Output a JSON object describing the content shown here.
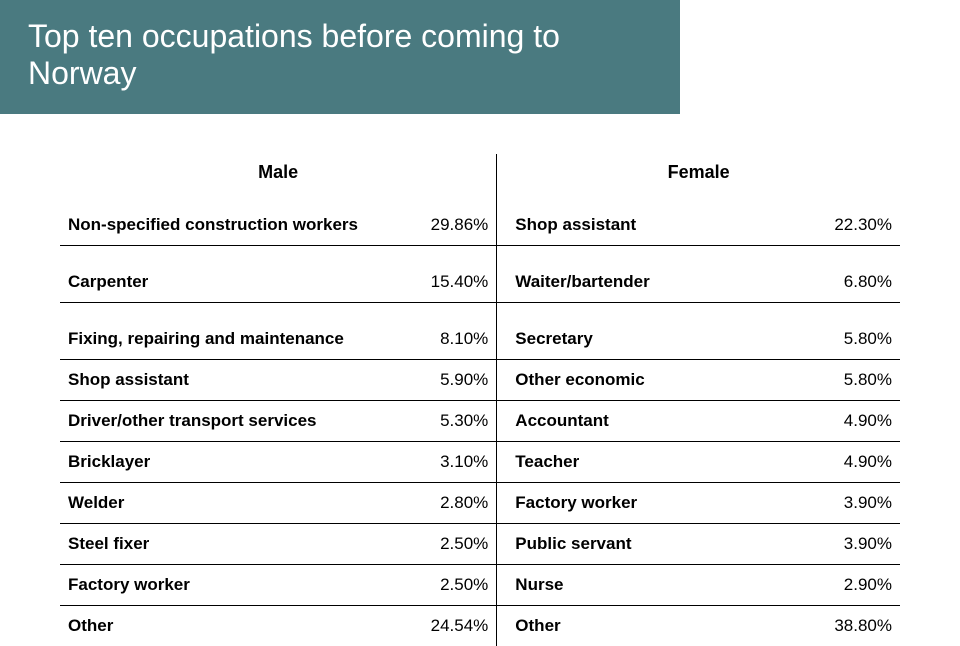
{
  "title": "Top ten occupations before coming to Norway",
  "headers": {
    "male": "Male",
    "female": "Female"
  },
  "rows": [
    {
      "m_occ": "Non-specified construction workers",
      "m_pct": "29.86%",
      "f_occ": "Shop assistant",
      "f_pct": "22.30%",
      "spaced": false
    },
    {
      "m_occ": "Carpenter",
      "m_pct": "15.40%",
      "f_occ": "Waiter/bartender",
      "f_pct": "6.80%",
      "spaced": true
    },
    {
      "m_occ": "Fixing, repairing and maintenance",
      "m_pct": "8.10%",
      "f_occ": "Secretary",
      "f_pct": "5.80%",
      "spaced": true
    },
    {
      "m_occ": "Shop assistant",
      "m_pct": "5.90%",
      "f_occ": "Other economic",
      "f_pct": "5.80%",
      "spaced": false
    },
    {
      "m_occ": "Driver/other transport services",
      "m_pct": "5.30%",
      "f_occ": "Accountant",
      "f_pct": "4.90%",
      "spaced": false
    },
    {
      "m_occ": "Bricklayer",
      "m_pct": "3.10%",
      "f_occ": "Teacher",
      "f_pct": "4.90%",
      "spaced": false
    },
    {
      "m_occ": "Welder",
      "m_pct": "2.80%",
      "f_occ": "Factory worker",
      "f_pct": "3.90%",
      "spaced": false
    },
    {
      "m_occ": "Steel fixer",
      "m_pct": "2.50%",
      "f_occ": "Public servant",
      "f_pct": "3.90%",
      "spaced": false
    },
    {
      "m_occ": "Factory worker",
      "m_pct": "2.50%",
      "f_occ": "Nurse",
      "f_pct": "2.90%",
      "spaced": false
    },
    {
      "m_occ": "Other",
      "m_pct": "24.54%",
      "f_occ": "Other",
      "f_pct": "38.80%",
      "spaced": false
    }
  ]
}
